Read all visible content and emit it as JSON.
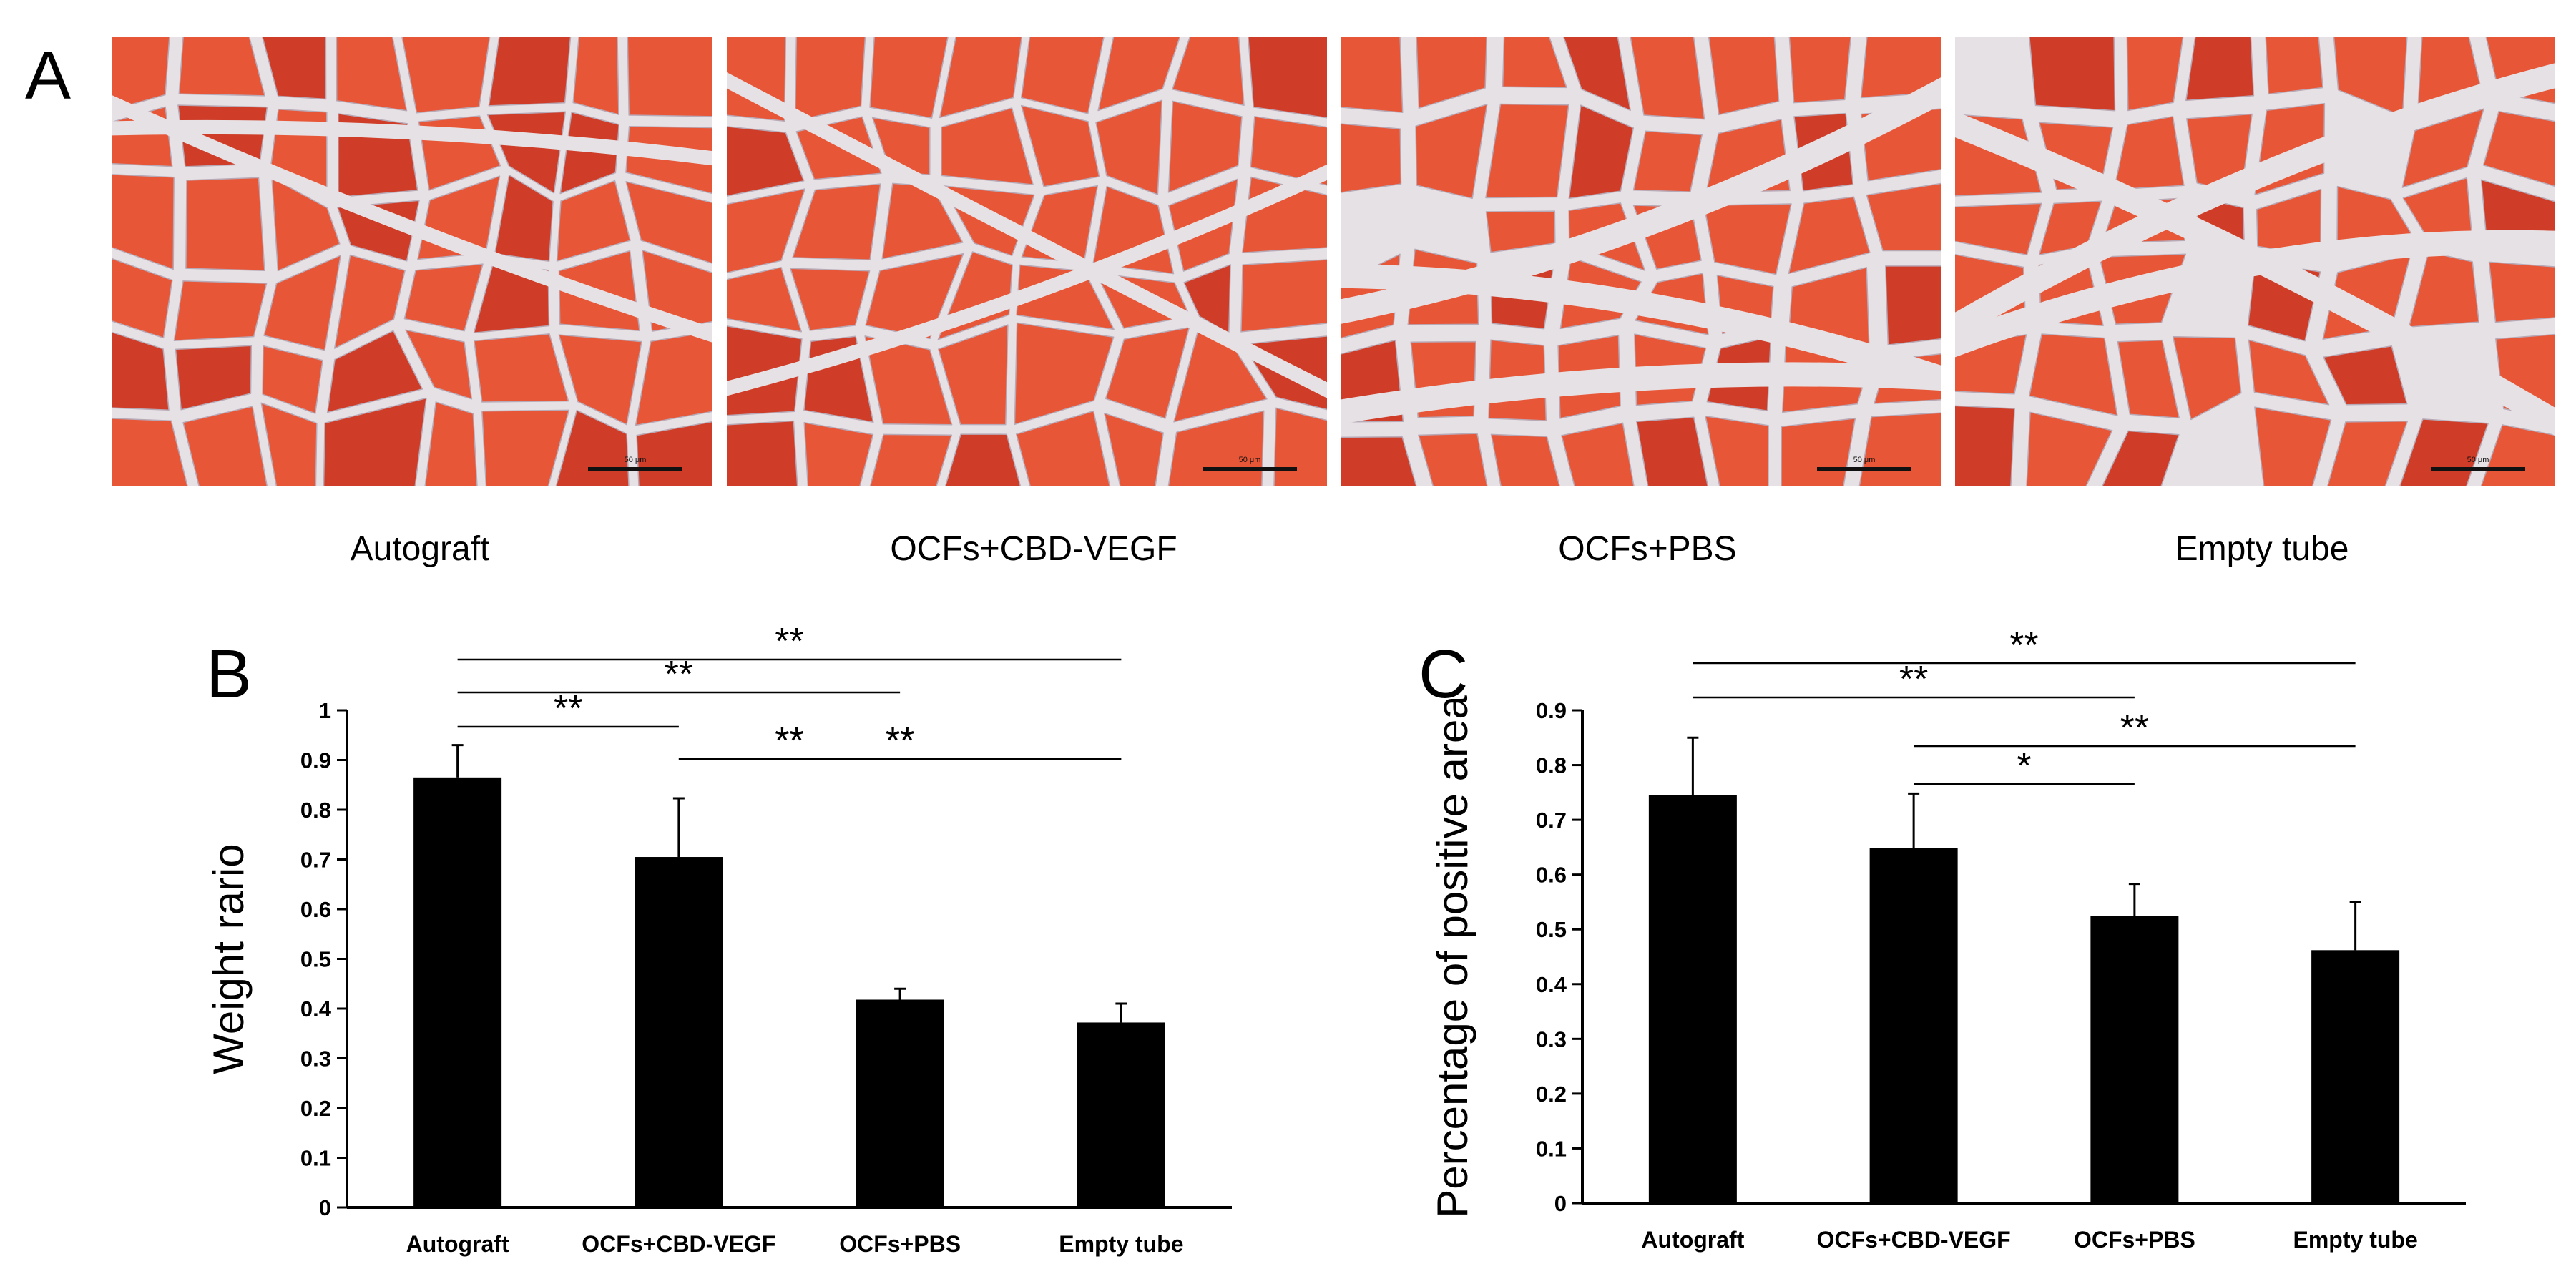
{
  "panel_a": {
    "letter": "A",
    "images": [
      {
        "caption": "Autograft",
        "scale": "50 μm"
      },
      {
        "caption": "OCFs+CBD-VEGF",
        "scale": "50 μm"
      },
      {
        "caption": "OCFs+PBS",
        "scale": "50 μm"
      },
      {
        "caption": "Empty tube",
        "scale": "50 μm"
      }
    ]
  },
  "colors": {
    "tissue": "#e85638",
    "tissue_dark": "#cf3d28",
    "stroma": "#e6e1e4",
    "stroma_edge": "#b8a9b6",
    "bar": "#000000"
  },
  "chart_data": [
    {
      "panel": "B",
      "type": "bar",
      "categories": [
        "Autograft",
        "OCFs+CBD-VEGF",
        "OCFs+PBS",
        "Empty tube"
      ],
      "values": [
        0.865,
        0.705,
        0.418,
        0.372
      ],
      "errors": [
        0.065,
        0.118,
        0.022,
        0.038
      ],
      "ylabel": "Weight rario",
      "ylim": [
        0,
        1
      ],
      "yticks": [
        "0",
        "0.1",
        "0.2",
        "0.3",
        "0.4",
        "0.5",
        "0.6",
        "0.7",
        "0.8",
        "0.9",
        "1"
      ],
      "significance": [
        {
          "from": 0,
          "to": 1,
          "label": "**"
        },
        {
          "from": 0,
          "to": 2,
          "label": "**"
        },
        {
          "from": 0,
          "to": 3,
          "label": "**"
        },
        {
          "from": 1,
          "to": 2,
          "label": "**"
        },
        {
          "from": 1,
          "to": 3,
          "label": "**"
        }
      ]
    },
    {
      "panel": "C",
      "type": "bar",
      "categories": [
        "Autograft",
        "OCFs+CBD-VEGF",
        "OCFs+PBS",
        "Empty tube"
      ],
      "values": [
        0.745,
        0.648,
        0.525,
        0.462
      ],
      "errors": [
        0.105,
        0.1,
        0.058,
        0.088
      ],
      "ylabel": "Percentage of positive area",
      "ylim": [
        0,
        0.9
      ],
      "yticks": [
        "0",
        "0.1",
        "0.2",
        "0.3",
        "0.4",
        "0.5",
        "0.6",
        "0.7",
        "0.8",
        "0.9"
      ],
      "significance": [
        {
          "from": 0,
          "to": 2,
          "label": "**"
        },
        {
          "from": 0,
          "to": 3,
          "label": "**"
        },
        {
          "from": 1,
          "to": 2,
          "label": "*"
        },
        {
          "from": 1,
          "to": 3,
          "label": "**"
        }
      ]
    }
  ]
}
